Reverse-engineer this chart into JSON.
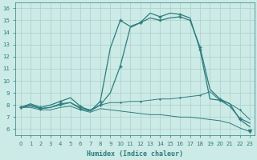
{
  "xlabel": "Humidex (Indice chaleur)",
  "bg_color": "#cceae6",
  "grid_color": "#aacfca",
  "line_color": "#2d7d7d",
  "xlim": [
    -0.5,
    23.5
  ],
  "ylim": [
    5.5,
    16.5
  ],
  "xticks": [
    0,
    1,
    2,
    3,
    4,
    5,
    6,
    7,
    8,
    9,
    10,
    11,
    12,
    13,
    14,
    15,
    16,
    17,
    18,
    19,
    20,
    21,
    22,
    23
  ],
  "yticks": [
    6,
    7,
    8,
    9,
    10,
    11,
    12,
    13,
    14,
    15,
    16
  ],
  "series": [
    {
      "x": [
        0,
        1,
        2,
        3,
        4,
        5,
        6,
        7,
        8,
        9,
        10,
        11,
        12,
        13,
        14,
        15,
        16,
        17,
        18,
        19,
        20,
        21,
        22,
        23
      ],
      "y": [
        7.8,
        8.1,
        7.8,
        8.0,
        8.3,
        8.6,
        7.9,
        7.5,
        8.3,
        12.7,
        15.0,
        14.5,
        14.8,
        15.6,
        15.3,
        15.6,
        15.5,
        15.2,
        12.6,
        8.5,
        8.4,
        7.9,
        6.9,
        6.5
      ],
      "marker": "+",
      "markersize": 3,
      "linestyle": "-",
      "linewidth": 0.9
    },
    {
      "x": [
        0,
        1,
        2,
        3,
        4,
        5,
        6,
        7,
        8,
        9,
        10,
        11,
        12,
        13,
        14,
        15,
        16,
        17,
        18,
        19,
        20,
        21,
        22,
        23
      ],
      "y": [
        7.8,
        8.0,
        7.7,
        7.8,
        8.1,
        8.2,
        7.7,
        7.5,
        8.0,
        9.0,
        11.2,
        14.4,
        14.8,
        15.2,
        15.0,
        15.2,
        15.3,
        15.0,
        12.8,
        9.3,
        8.5,
        8.1,
        6.8,
        6.2
      ],
      "marker": "+",
      "markersize": 3,
      "linestyle": "-",
      "linewidth": 0.9
    },
    {
      "x": [
        0,
        1,
        2,
        3,
        4,
        5,
        6,
        7,
        8,
        9,
        10,
        11,
        12,
        13,
        14,
        15,
        16,
        17,
        18,
        19,
        20,
        21,
        22,
        23
      ],
      "y": [
        7.8,
        7.9,
        7.7,
        7.8,
        8.0,
        8.2,
        7.8,
        7.6,
        8.0,
        8.2,
        8.2,
        8.3,
        8.3,
        8.4,
        8.5,
        8.5,
        8.6,
        8.7,
        8.8,
        9.1,
        8.4,
        8.1,
        7.6,
        6.8
      ],
      "marker": "+",
      "markersize": 2,
      "linestyle": "-",
      "linewidth": 0.7
    },
    {
      "x": [
        0,
        1,
        2,
        3,
        4,
        5,
        6,
        7,
        8,
        9,
        10,
        11,
        12,
        13,
        14,
        15,
        16,
        17,
        18,
        19,
        20,
        21,
        22,
        23
      ],
      "y": [
        7.8,
        7.8,
        7.6,
        7.6,
        7.8,
        7.9,
        7.6,
        7.4,
        7.7,
        7.6,
        7.5,
        7.4,
        7.3,
        7.2,
        7.2,
        7.1,
        7.0,
        7.0,
        6.9,
        6.8,
        6.7,
        6.5,
        6.1,
        5.8
      ],
      "marker": "v",
      "markersize": 3,
      "linestyle": "-",
      "linewidth": 0.7
    }
  ]
}
